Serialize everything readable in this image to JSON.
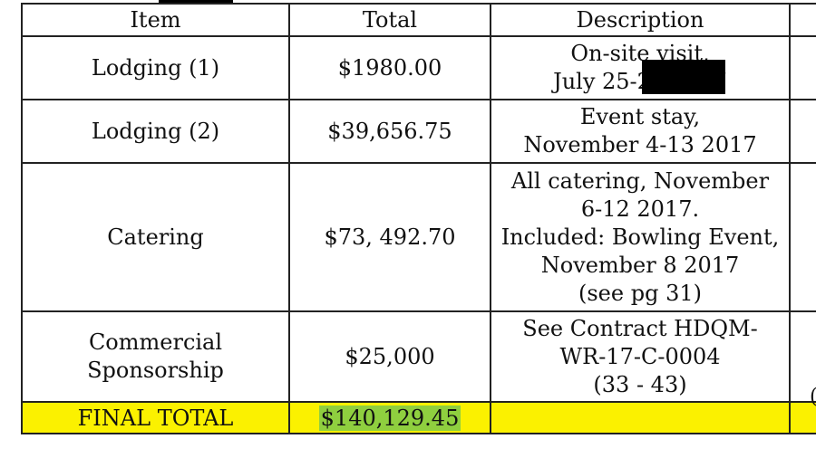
{
  "table": {
    "headers": [
      "Item",
      "Total",
      "Description",
      ""
    ],
    "rows": [
      {
        "item": "Lodging (1)",
        "total": "$1980.00",
        "description": [
          "On-site visit,",
          "July 25-27 2017"
        ]
      },
      {
        "item": "Lodging (2)",
        "total": "$39,656.75",
        "description": [
          "Event stay,",
          "November 4-13 2017"
        ]
      },
      {
        "item": "Catering",
        "total": "$73, 492.70",
        "description": [
          "All catering, November",
          "6-12 2017.",
          "Included: Bowling Event,",
          "November 8 2017",
          "(see pg 31)"
        ]
      },
      {
        "item": [
          "Commercial",
          "Sponsorship"
        ],
        "total": "$25,000",
        "description": [
          "See Contract HDQM-",
          "WR-17-C-0004",
          "(33 - 43)"
        ]
      }
    ],
    "final": {
      "label": "FINAL TOTAL",
      "total": "$140,129.45"
    },
    "edge_fragment": "("
  },
  "colors": {
    "final_row_background": "#fbf100",
    "total_highlight": "#8fcf3f",
    "redaction": "#000000"
  }
}
